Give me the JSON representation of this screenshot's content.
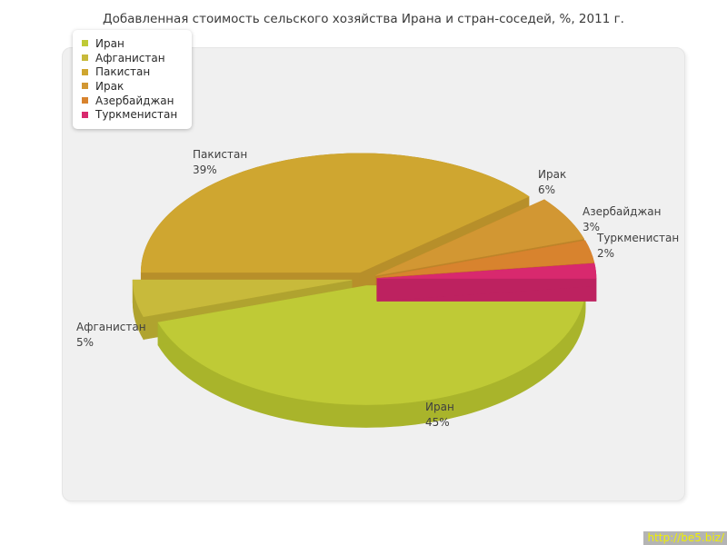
{
  "page": {
    "background": "#ffffff"
  },
  "title": "Добавленная стоимость сельского хозяйства Ирана и стран-соседей, %, 2011 г.",
  "watermark": {
    "text": "http://be5.biz/",
    "background": "#b4b4b4",
    "color": "#f0f000"
  },
  "panel": {
    "background": "#f0f0f0",
    "border": "#e5e5e5"
  },
  "legend": {
    "background": "#ffffff",
    "position": "top-left"
  },
  "chart_data": {
    "type": "pie",
    "title": "Добавленная стоимость сельского хозяйства Ирана и стран-соседей, %, 2011 г.",
    "unit": "%",
    "year_label": "2011 г.",
    "three_d": true,
    "exploded": true,
    "legend_position": "top-left",
    "start_angle_deg": 0,
    "direction": "counterclockwise",
    "slices": [
      {
        "key": "iran",
        "label": "Иран",
        "value": 45,
        "pct_label": "45%",
        "color": "#bfca36",
        "side_color": "#a9b42b"
      },
      {
        "key": "afghanistan",
        "label": "Афганистан",
        "value": 5,
        "pct_label": "5%",
        "color": "#c8ba3b",
        "side_color": "#b0a32f"
      },
      {
        "key": "pakistan",
        "label": "Пакистан",
        "value": 39,
        "pct_label": "39%",
        "color": "#cfa630",
        "side_color": "#b78f2a"
      },
      {
        "key": "iraq",
        "label": "Ирак",
        "value": 6,
        "pct_label": "6%",
        "color": "#d29733",
        "side_color": "#bd8429"
      },
      {
        "key": "azerbaijan",
        "label": "Азербайджан",
        "value": 3,
        "pct_label": "3%",
        "color": "#d8832e",
        "side_color": "#c37325"
      },
      {
        "key": "turkmenistan",
        "label": "Туркменистан",
        "value": 2,
        "pct_label": "2%",
        "color": "#d8296e",
        "side_color": "#bd2260"
      }
    ]
  }
}
